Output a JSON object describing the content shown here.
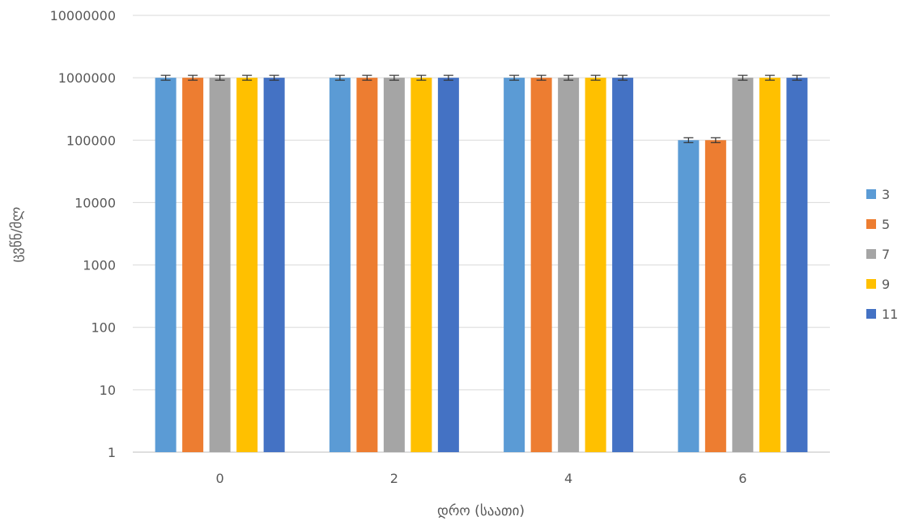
{
  "chart_data": {
    "type": "bar",
    "title": "",
    "xlabel": "დრო (საათი)",
    "ylabel": "ცვწნ/მლ",
    "categories": [
      "0",
      "2",
      "4",
      "6"
    ],
    "y_scale": "log",
    "ylim": [
      1,
      10000000
    ],
    "y_ticks": [
      "1",
      "10",
      "100",
      "1000",
      "10000",
      "100000",
      "1000000",
      "10000000"
    ],
    "grid": true,
    "legend_position": "right",
    "error_bars": true,
    "series": [
      {
        "name": "3",
        "color": "#5B9BD5",
        "values": [
          1000000,
          1000000,
          1000000,
          100000
        ]
      },
      {
        "name": "5",
        "color": "#ED7D31",
        "values": [
          1000000,
          1000000,
          1000000,
          100000
        ]
      },
      {
        "name": "7",
        "color": "#A5A5A5",
        "values": [
          1000000,
          1000000,
          1000000,
          1000000
        ]
      },
      {
        "name": "9",
        "color": "#FFC000",
        "values": [
          1000000,
          1000000,
          1000000,
          1000000
        ]
      },
      {
        "name": "11",
        "color": "#4472C4",
        "values": [
          1000000,
          1000000,
          1000000,
          1000000
        ]
      }
    ]
  }
}
